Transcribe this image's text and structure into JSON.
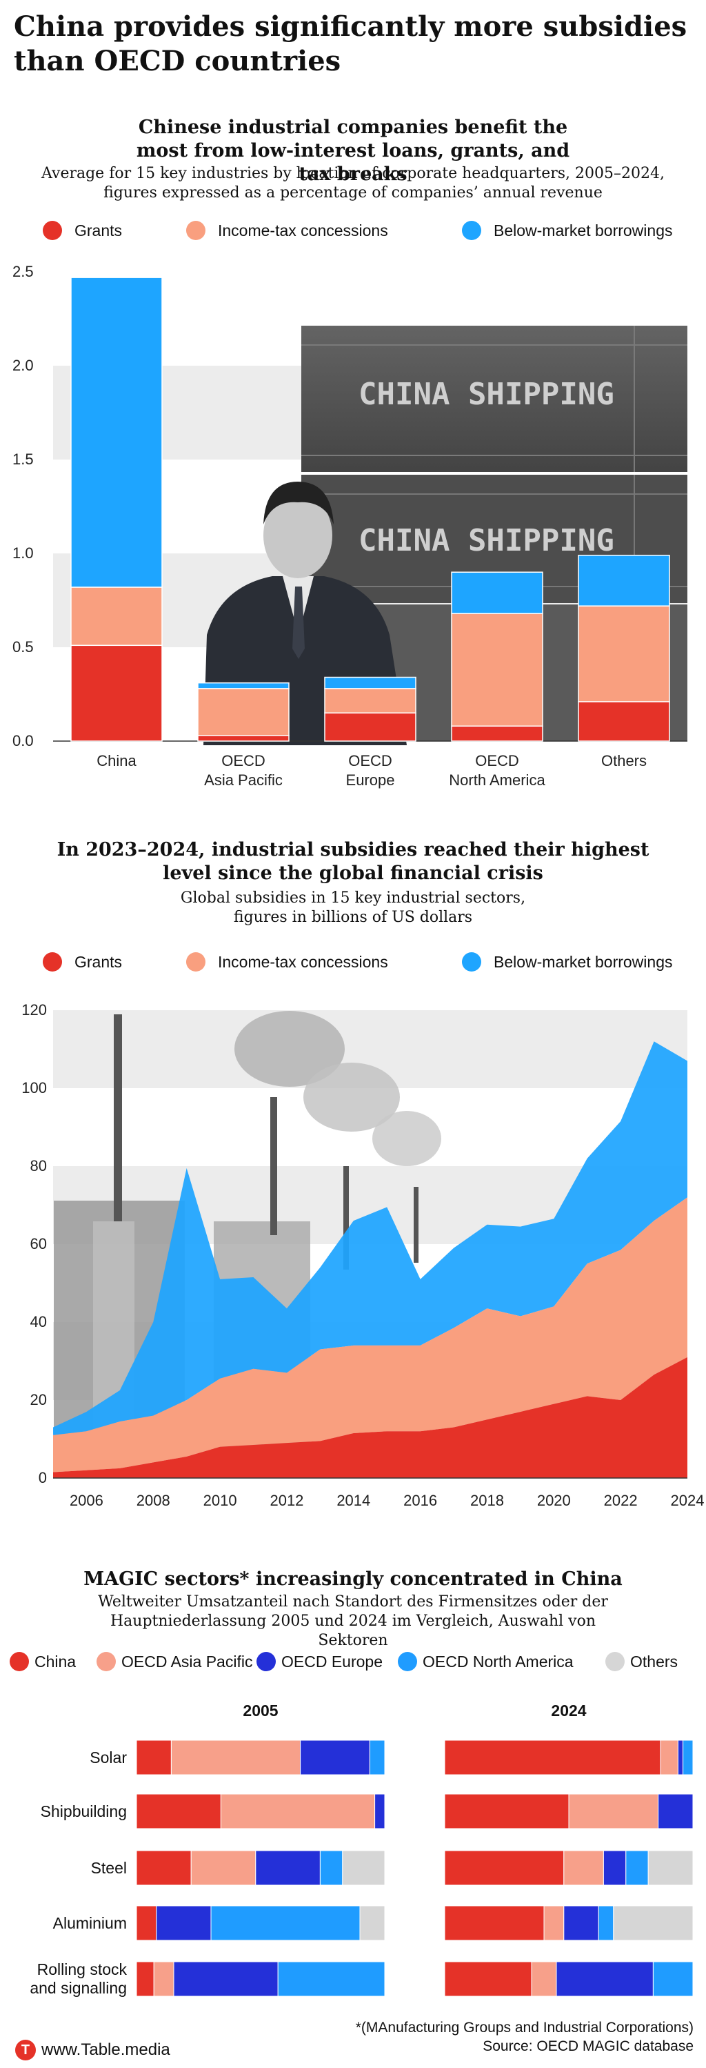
{
  "headline": "China provides significantly more subsidies than OECD countries",
  "colors": {
    "grants": "#e53228",
    "tax": "#f99f7f",
    "borrow": "#1ea5ff",
    "china": "#e53228",
    "oecd_asia": "#f7a08a",
    "oecd_europe": "#2430d8",
    "oecd_na": "#1f9cff",
    "others": "#d6d6d6"
  },
  "section1": {
    "title": "Chinese industrial companies benefit the most from low-interest loans, grants, and tax breaks",
    "subtitle": "Average for 15 key industries by location of corporate headquarters, 2005–2024, figures expressed as a percentage of companies’ annual revenue",
    "legend": [
      "Grants",
      "Income-tax concessions",
      "Below-market borrowings"
    ],
    "photo_text": [
      "CHINA SHIPPING",
      "CHINA SHIPPING"
    ]
  },
  "section2": {
    "title": "In 2023–2024, industrial subsidies reached their highest level since the global financial crisis",
    "subtitle": "Global subsidies in 15 key industrial sectors, figures in billions of US dollars",
    "legend": [
      "Grants",
      "Income-tax concessions",
      "Below-market borrowings"
    ]
  },
  "section3": {
    "title": "MAGIC sectors* increasingly concentrated in China",
    "subtitle": "Weltweiter Umsatzanteil nach Standort des Firmensitzes oder der Hauptniederlassung 2005 und 2024 im Vergleich, Auswahl von Sektoren",
    "legend": [
      "China",
      "OECD Asia Pacific",
      "OECD Europe",
      "OECD North America",
      "Others"
    ],
    "year_left": "2005",
    "year_right": "2024"
  },
  "footer": {
    "brand": "www.Table.media",
    "logo_letter": "T",
    "footnote": "*(MAnufacturing Groups and Industrial Corporations)",
    "source": "Source: OECD MAGIC database"
  },
  "chart_data": [
    {
      "type": "bar",
      "stacked": true,
      "title": "Chinese industrial companies benefit the most from low-interest loans, grants, and tax breaks",
      "categories": [
        "China",
        "OECD Asia Pacific",
        "OECD Europe",
        "OECD North America",
        "Others"
      ],
      "series": [
        {
          "name": "Grants",
          "values": [
            0.51,
            0.03,
            0.15,
            0.08,
            0.21
          ]
        },
        {
          "name": "Income-tax concessions",
          "values": [
            0.31,
            0.25,
            0.13,
            0.6,
            0.51
          ]
        },
        {
          "name": "Below-market borrowings",
          "values": [
            1.65,
            0.03,
            0.06,
            0.22,
            0.27
          ]
        }
      ],
      "ylim": [
        0,
        2.5
      ],
      "yticks": [
        "0.0",
        "0.5",
        "1.0",
        "1.5",
        "2.0",
        "2.5"
      ],
      "grid": true,
      "legend_position": "top"
    },
    {
      "type": "area",
      "stacked": true,
      "title": "In 2023–2024, industrial subsidies reached their highest level since the global financial crisis",
      "x": [
        2005,
        2006,
        2007,
        2008,
        2009,
        2010,
        2011,
        2012,
        2013,
        2014,
        2015,
        2016,
        2017,
        2018,
        2019,
        2020,
        2021,
        2022,
        2023,
        2024
      ],
      "series": [
        {
          "name": "Grants",
          "values": [
            1.5,
            2,
            2.5,
            4,
            5.5,
            8,
            8.5,
            9,
            9.5,
            11.5,
            12,
            12,
            13,
            15,
            17,
            19,
            21,
            20,
            26.5,
            31
          ]
        },
        {
          "name": "Income-tax concessions",
          "values": [
            9.5,
            10,
            12,
            12,
            14.5,
            17.5,
            19.5,
            18,
            23.5,
            22.5,
            22,
            22,
            25.5,
            28.5,
            24.5,
            25,
            34,
            38.5,
            39.5,
            41
          ]
        },
        {
          "name": "Below-market borrowings",
          "values": [
            2,
            5,
            8,
            24,
            59.5,
            25.5,
            23.5,
            16.5,
            21,
            32,
            35.5,
            17,
            20.5,
            21.5,
            23,
            22.5,
            27,
            33,
            46,
            35
          ]
        }
      ],
      "ylim": [
        0,
        120
      ],
      "yticks": [
        0,
        20,
        40,
        60,
        80,
        100,
        120
      ],
      "xticks": [
        2006,
        2008,
        2010,
        2012,
        2014,
        2016,
        2018,
        2020,
        2022,
        2024
      ],
      "grid": true,
      "legend_position": "top"
    },
    {
      "type": "bar",
      "stacked": true,
      "orientation": "horizontal",
      "title": "MAGIC sectors* increasingly concentrated in China",
      "panel": "2005",
      "categories": [
        "Solar",
        "Shipbuilding",
        "Steel",
        "Aluminium",
        "Rolling stock and signalling"
      ],
      "series": [
        {
          "name": "China",
          "values": [
            14,
            34,
            22,
            8,
            7
          ]
        },
        {
          "name": "OECD Asia Pacific",
          "values": [
            52,
            62,
            26,
            0,
            8
          ]
        },
        {
          "name": "OECD Europe",
          "values": [
            28,
            4,
            26,
            22,
            42
          ]
        },
        {
          "name": "OECD North America",
          "values": [
            6,
            0,
            9,
            60,
            43
          ]
        },
        {
          "name": "Others",
          "values": [
            0,
            0,
            17,
            10,
            0
          ]
        }
      ],
      "xlim": [
        0,
        100
      ]
    },
    {
      "type": "bar",
      "stacked": true,
      "orientation": "horizontal",
      "title": "MAGIC sectors* increasingly concentrated in China",
      "panel": "2024",
      "categories": [
        "Solar",
        "Shipbuilding",
        "Steel",
        "Aluminium",
        "Rolling stock and signalling"
      ],
      "series": [
        {
          "name": "China",
          "values": [
            87,
            50,
            48,
            40,
            35
          ]
        },
        {
          "name": "OECD Asia Pacific",
          "values": [
            7,
            36,
            16,
            8,
            10
          ]
        },
        {
          "name": "OECD Europe",
          "values": [
            2,
            14,
            9,
            14,
            39
          ]
        },
        {
          "name": "OECD North America",
          "values": [
            4,
            0,
            9,
            6,
            16
          ]
        },
        {
          "name": "Others",
          "values": [
            0,
            0,
            18,
            32,
            0
          ]
        }
      ],
      "xlim": [
        0,
        100
      ]
    }
  ]
}
